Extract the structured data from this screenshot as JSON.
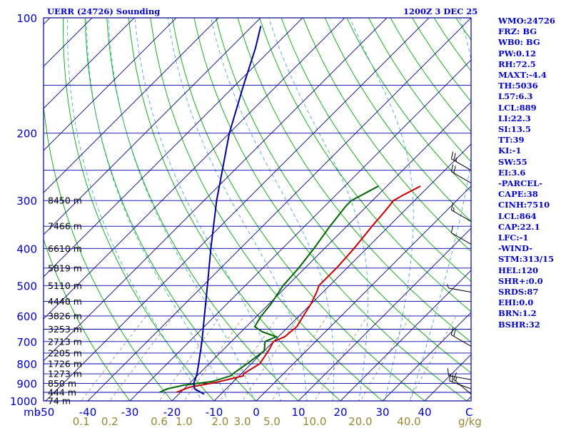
{
  "header": {
    "station_title": "UERR (24726) Sounding",
    "valid_time": "1200Z  3 DEC 25"
  },
  "colors": {
    "frame": "#000099",
    "isobar": "#0000aa",
    "isotherm": "#000080",
    "dry_adiabat": "#00aa00",
    "moist_adiabat": "#44aacc",
    "mixing_ratio": "#998866",
    "temperature": "#cc0000",
    "dewpoint": "#006600",
    "parcel": "#000099",
    "axis_text": "#0000cc",
    "mixing_text": "#998833"
  },
  "stats": [
    "WMO:24726",
    "FRZ: BG",
    "WB0: BG",
    "PW:0.12",
    "RH:72.5",
    "MAXT:-4.4",
    "TH:5036",
    "L57:6.3",
    "LCL:889",
    "LI:22.3",
    "SI:13.5",
    "TT:39",
    "KI:-1",
    "SW:55",
    "EI:3.6",
    "-PARCEL-",
    "CAPE:38",
    "CINH:7510",
    "LCL:864",
    "CAP:22.1",
    "LFC:-1",
    "-WIND-",
    "STM:313/15",
    "HEL:120",
    "SHR+:0.0",
    "SRDS:87",
    "EHI:0.0",
    "BRN:1.2",
    "BSHR:32"
  ],
  "chart_data": {
    "type": "line",
    "diagram": "skew-T log-P",
    "y_axis": {
      "scale": "log",
      "range": [
        1000,
        100
      ],
      "tick_labels": [
        "100",
        "200",
        "300",
        "400",
        "500",
        "600",
        "700",
        "800",
        "900",
        "1000"
      ],
      "unit_label": "mb"
    },
    "x_axis": {
      "tick_labels": [
        "-50",
        "-40",
        "-30",
        "-20",
        "-10",
        "0",
        "10",
        "20",
        "30",
        "40"
      ],
      "unit_label": "C"
    },
    "mixing_ratio_labels": [
      "0.1",
      "0.2",
      "0.6",
      "1.0",
      "2.0",
      "3.0",
      "5.0",
      "10.0",
      "20.0",
      "40.0"
    ],
    "mixing_ratio_unit": "g/kg",
    "height_labels": [
      {
        "p": 1000,
        "label": "74 m"
      },
      {
        "p": 950,
        "label": "444 m"
      },
      {
        "p": 900,
        "label": "850 m"
      },
      {
        "p": 850,
        "label": "1273 m"
      },
      {
        "p": 800,
        "label": "1726 m"
      },
      {
        "p": 750,
        "label": "2205 m"
      },
      {
        "p": 700,
        "label": "2713 m"
      },
      {
        "p": 650,
        "label": "3253 m"
      },
      {
        "p": 600,
        "label": "3826 m"
      },
      {
        "p": 550,
        "label": "4440 m"
      },
      {
        "p": 500,
        "label": "5110 m"
      },
      {
        "p": 450,
        "label": "5819 m"
      },
      {
        "p": 400,
        "label": "6610 m"
      },
      {
        "p": 350,
        "label": "7466 m"
      },
      {
        "p": 300,
        "label": "8450 m"
      }
    ],
    "series": [
      {
        "key": "temperature",
        "points": [
          [
            950,
            -21
          ],
          [
            920,
            -19
          ],
          [
            895,
            -14
          ],
          [
            860,
            -9
          ],
          [
            850,
            -9.5
          ],
          [
            800,
            -8
          ],
          [
            740,
            -9
          ],
          [
            700,
            -10
          ],
          [
            680,
            -8.5
          ],
          [
            640,
            -8
          ],
          [
            600,
            -9
          ],
          [
            560,
            -10
          ],
          [
            520,
            -11.5
          ],
          [
            500,
            -12.5
          ],
          [
            450,
            -12.5
          ],
          [
            400,
            -13
          ],
          [
            350,
            -14
          ],
          [
            320,
            -14.5
          ],
          [
            300,
            -15
          ],
          [
            290,
            -14
          ],
          [
            275,
            -12
          ]
        ]
      },
      {
        "key": "dewpoint",
        "points": [
          [
            950,
            -25
          ],
          [
            930,
            -24
          ],
          [
            910,
            -21
          ],
          [
            890,
            -15
          ],
          [
            860,
            -12
          ],
          [
            850,
            -12
          ],
          [
            800,
            -11
          ],
          [
            740,
            -10
          ],
          [
            700,
            -12
          ],
          [
            680,
            -10.5
          ],
          [
            660,
            -15
          ],
          [
            640,
            -18
          ],
          [
            600,
            -19
          ],
          [
            560,
            -19.5
          ],
          [
            520,
            -20.5
          ],
          [
            500,
            -21
          ],
          [
            450,
            -21.5
          ],
          [
            400,
            -22.5
          ],
          [
            350,
            -24
          ],
          [
            310,
            -25
          ],
          [
            300,
            -25
          ],
          [
            275,
            -22
          ]
        ]
      },
      {
        "key": "parcel",
        "points": [
          [
            960,
            -14
          ],
          [
            930,
            -17.5
          ],
          [
            900,
            -19
          ],
          [
            850,
            -20.5
          ],
          [
            800,
            -22.5
          ],
          [
            700,
            -27
          ],
          [
            600,
            -32.5
          ],
          [
            500,
            -39
          ],
          [
            400,
            -47
          ],
          [
            300,
            -57
          ],
          [
            200,
            -70
          ],
          [
            150,
            -78
          ],
          [
            120,
            -84
          ],
          [
            105,
            -88
          ]
        ]
      }
    ],
    "wind_barbs": [
      {
        "p": 960,
        "dir": 310,
        "speed_kt": 15
      },
      {
        "p": 930,
        "dir": 290,
        "speed_kt": 20
      },
      {
        "p": 880,
        "dir": 280,
        "speed_kt": 10
      },
      {
        "p": 720,
        "dir": 300,
        "speed_kt": 20
      },
      {
        "p": 520,
        "dir": 280,
        "speed_kt": 5
      },
      {
        "p": 390,
        "dir": 300,
        "speed_kt": 10
      },
      {
        "p": 340,
        "dir": 300,
        "speed_kt": 15
      },
      {
        "p": 270,
        "dir": 300,
        "speed_kt": 20
      },
      {
        "p": 250,
        "dir": 300,
        "speed_kt": 25
      }
    ]
  }
}
